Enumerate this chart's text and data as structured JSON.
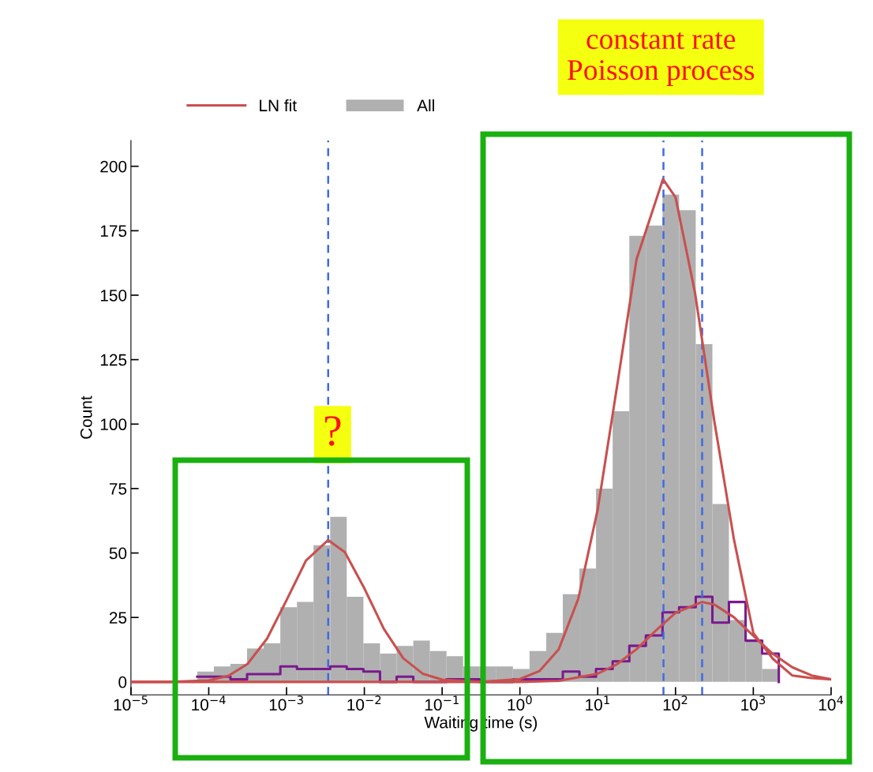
{
  "chart_data": {
    "type": "histogram",
    "xlabel": "Waiting time (s)",
    "ylabel": "Count",
    "bins": [
      7.11e-05,
      0.0001164,
      0.0001901,
      0.000311,
      0.000508,
      0.000832,
      0.001361,
      0.002223,
      0.00364,
      0.00594,
      0.00973,
      0.0159,
      0.026,
      0.0426,
      0.0695,
      0.1138,
      0.186,
      0.304,
      0.498,
      0.813,
      1.33,
      2.18,
      3.56,
      5.82,
      9.51,
      15.56,
      25.5,
      41.6,
      68.1,
      111.2,
      182,
      298,
      486,
      796,
      1300,
      2128
    ],
    "series": [
      {
        "name": "LN fit",
        "type": "line",
        "color": "#c8504f",
        "x": [
          1e-05,
          3.16e-05,
          0.0001,
          0.000178,
          0.000316,
          0.000562,
          0.001,
          0.00178,
          0.00343,
          0.00562,
          0.01,
          0.0178,
          0.0316,
          0.0562,
          0.1,
          0.316,
          1,
          1.78,
          3.16,
          5.62,
          10,
          17.8,
          31.6,
          69,
          100,
          178,
          316,
          562,
          1000,
          1780,
          3160,
          5620,
          10000
        ],
        "values": [
          0,
          0,
          0.6,
          2.3,
          7,
          16.8,
          31.7,
          47.1,
          55,
          50.3,
          36.3,
          20.6,
          9.2,
          3.2,
          0.9,
          0,
          1.1,
          4.2,
          12.7,
          32.2,
          66.9,
          115,
          164,
          195,
          188,
          151,
          101,
          55.5,
          19,
          9,
          2.5,
          1.5,
          1
        ]
      },
      {
        "name": "All",
        "color": "#b0b0b0",
        "values": [
          4,
          6,
          7,
          13,
          15,
          29,
          31,
          53,
          64,
          33,
          15,
          11,
          14,
          16,
          12,
          10,
          6,
          6,
          6,
          5,
          12,
          19,
          34,
          44,
          75,
          105,
          173,
          177,
          189,
          183,
          131,
          69,
          24,
          16,
          5
        ]
      },
      {
        "type": "step",
        "color": "#7a1a8c",
        "x": [
          7.11e-05,
          0.0001164,
          0.0001901,
          0.000311,
          0.000508,
          0.000832,
          0.001361,
          0.002223,
          0.00364,
          0.00594,
          0.00973,
          0.0159,
          0.026,
          0.0426,
          0.0695,
          0.1138,
          0.186,
          0.304,
          0.498,
          0.813,
          1.33,
          2.18,
          3.56,
          5.82,
          9.51,
          15.56,
          25.5,
          41.6,
          68.1,
          111.2,
          182,
          298,
          486,
          796,
          1300,
          2128
        ],
        "values": [
          2,
          2,
          1,
          3,
          3,
          6,
          5,
          5,
          6,
          5,
          4,
          0,
          2,
          0,
          0,
          1,
          1,
          0,
          0,
          1,
          1,
          1,
          4,
          2,
          5,
          8,
          14,
          18,
          27,
          29,
          33,
          23,
          31,
          16,
          11,
          0
        ]
      },
      {
        "type": "line",
        "color": "#c8504f",
        "x": [
          1e-05,
          0.1,
          1,
          3.16,
          10,
          17.8,
          31.6,
          56.2,
          100,
          220,
          316,
          562,
          1000,
          1780,
          3160,
          5620,
          10000
        ],
        "values": [
          0,
          0,
          0,
          0.4,
          3.2,
          6.9,
          12.7,
          20,
          26.8,
          31,
          30,
          25.1,
          17.9,
          10.9,
          5.7,
          2.5,
          1
        ]
      }
    ],
    "xlim": [
      1e-05,
      10000
    ],
    "ylim": [
      -5,
      210
    ],
    "log": "x",
    "xticks": [
      {
        "value": 1e-05,
        "label": "10$^{−5}$"
      },
      {
        "value": 0.0001,
        "label": "10$^{−4}$"
      },
      {
        "value": 0.001,
        "label": "10$^{−3}$"
      },
      {
        "value": 0.01,
        "label": "10$^{−2}$"
      },
      {
        "value": 0.1,
        "label": "10$^{−1}$"
      },
      {
        "value": 1,
        "label": "10$^{0}$"
      },
      {
        "value": 10,
        "label": "10$^{1}$"
      },
      {
        "value": 100,
        "label": "10$^{2}$"
      },
      {
        "value": 1000,
        "label": "10$^{3}$"
      },
      {
        "value": 10000,
        "label": "10$^{4}$"
      }
    ],
    "yticks": [
      0,
      25,
      50,
      75,
      100,
      125,
      150,
      175,
      200
    ],
    "ref_lines": [
      {
        "axis": "x",
        "value": 0.00343,
        "color": "#4169e1",
        "line_style": "dashed"
      },
      {
        "axis": "x",
        "value": 70,
        "color": "#4169e1",
        "line_style": "dashed"
      },
      {
        "axis": "x",
        "value": 220,
        "color": "#4169e1",
        "line_style": "dashed"
      }
    ],
    "annotations": [
      "constant rate\nPoisson process",
      "?"
    ],
    "legend": "top",
    "grid": false
  }
}
